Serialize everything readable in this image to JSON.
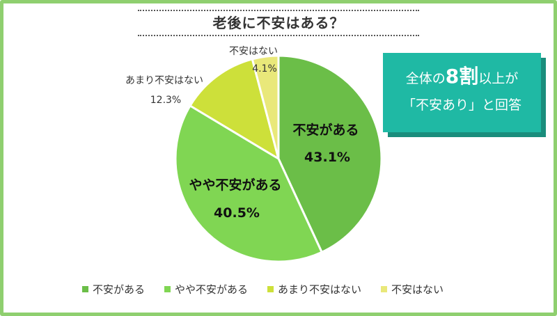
{
  "title": "老後に不安はある？",
  "callout": {
    "prefix": "全体の",
    "highlight": "8割",
    "suffix": "以上が",
    "line2": "「不安あり」と回答"
  },
  "chart_data": {
    "type": "pie",
    "title": "老後に不安はある？",
    "series": [
      {
        "name": "不安がある",
        "value": 43.1,
        "label": "43.1%",
        "color": "#6bbe48"
      },
      {
        "name": "やや不安がある",
        "value": 40.5,
        "label": "40.5%",
        "color": "#80d653"
      },
      {
        "name": "あまり不安はない",
        "value": 12.3,
        "label": "12.3%",
        "color": "#cde03a"
      },
      {
        "name": "不安はない",
        "value": 4.1,
        "label": "4.1%",
        "color": "#e9e87a"
      }
    ],
    "legend_position": "bottom"
  }
}
